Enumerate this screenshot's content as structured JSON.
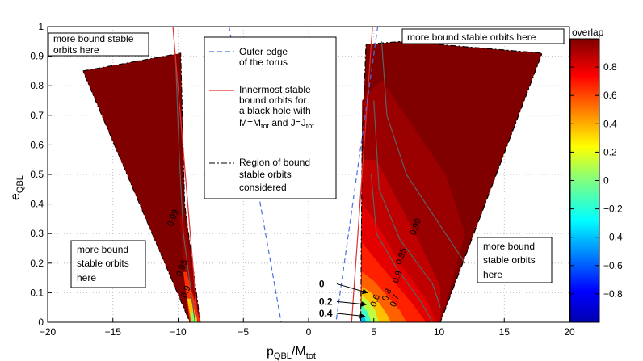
{
  "chart_data": {
    "type": "contour",
    "xlabel_main": "p",
    "xlabel_sub1": "QBL",
    "xlabel_mid": "/M",
    "xlabel_sub2": "tot",
    "ylabel_main": "e",
    "ylabel_sub": "QBL",
    "xlim": [
      -20,
      20
    ],
    "ylim": [
      0,
      1
    ],
    "x_ticks": [
      -20,
      -15,
      -10,
      -5,
      0,
      5,
      10,
      15,
      20
    ],
    "y_ticks": [
      0,
      0.1,
      0.2,
      0.3,
      0.4,
      0.5,
      0.6,
      0.7,
      0.8,
      0.9,
      1
    ],
    "grid": true,
    "colorbar": {
      "title": "overlap",
      "range": [
        -1,
        1
      ],
      "ticks": [
        0.8,
        0.6,
        0.4,
        0.2,
        0,
        -0.2,
        -0.4,
        -0.6,
        -0.8
      ],
      "tick_labels": [
        "0.8",
        "0.6",
        "0.4",
        "0.2",
        "0",
        "−0.2",
        "−0.4",
        "−0.6",
        "−0.8"
      ]
    },
    "regions": {
      "left": [
        [
          -17.3,
          0.85
        ],
        [
          -9.8,
          0.91
        ],
        [
          -9.5,
          0.4
        ],
        [
          -8.3,
          0.0
        ],
        [
          -9.1,
          0.0
        ]
      ],
      "right": [
        [
          4.4,
          0.94
        ],
        [
          7.2,
          0.95
        ],
        [
          17.9,
          0.91
        ],
        [
          10.1,
          0.0
        ],
        [
          4.0,
          0.0
        ],
        [
          4.1,
          0.6
        ]
      ]
    },
    "isco_lines": [
      [
        [
          -10.4,
          1.0
        ],
        [
          -8.5,
          0.0
        ]
      ],
      [
        [
          4.9,
          1.0
        ],
        [
          3.3,
          0.0
        ]
      ]
    ],
    "torus_lines": [
      [
        [
          -6.1,
          1.0
        ],
        [
          -2.1,
          0.0
        ]
      ],
      [
        [
          5.3,
          1.0
        ],
        [
          2.1,
          0.0
        ]
      ]
    ],
    "contours_left": [
      {
        "label": "0.99",
        "x": -10.2,
        "y": 0.35
      },
      {
        "label": "0.95",
        "x": -9.5,
        "y": 0.18
      },
      {
        "label": "0.9",
        "x": -9.2,
        "y": 0.1
      }
    ],
    "contours_right": [
      {
        "label": "0.99",
        "x": 8.4,
        "y": 0.32
      },
      {
        "label": "0.95",
        "x": 7.3,
        "y": 0.22
      },
      {
        "label": "0.9",
        "x": 7.0,
        "y": 0.15
      },
      {
        "label": "0.8",
        "x": 6.2,
        "y": 0.09
      },
      {
        "label": "0.7",
        "x": 6.8,
        "y": 0.07
      },
      {
        "label": "0.6",
        "x": 5.3,
        "y": 0.07
      }
    ],
    "arrow_labels": [
      {
        "label": "0",
        "x_text": 0.8,
        "y_text": 0.13,
        "x_to": 4.5,
        "y_to": 0.1
      },
      {
        "label": "0.2",
        "x_text": 0.8,
        "y_text": 0.07,
        "x_to": 4.4,
        "y_to": 0.06
      },
      {
        "label": "0.4",
        "x_text": 0.8,
        "y_text": 0.03,
        "x_to": 4.3,
        "y_to": 0.02
      }
    ],
    "legend": {
      "entries": [
        {
          "label_lines": [
            "Outer edge",
            "of the torus"
          ],
          "style": "blue-dashed"
        },
        {
          "label_lines": [
            "Innermost stable",
            "bound orbits for",
            "a black hole with"
          ],
          "style": "red-solid"
        },
        {
          "label_lines": [
            "Region of bound",
            "stable orbits",
            "considered"
          ],
          "style": "black-dashdot"
        }
      ],
      "math_line": {
        "m1": "M=M",
        "s1": "tot",
        "and": " and J=J",
        "s2": "tot"
      }
    },
    "annotations": [
      {
        "lines": [
          "more bound stable"
        ],
        "lines2": [
          "orbits here"
        ],
        "pos": "top-left"
      },
      {
        "lines": [
          "more bound stable orbits here"
        ],
        "pos": "top-right"
      },
      {
        "lines": [
          "more bound",
          "stable orbits",
          "here"
        ],
        "pos": "left"
      },
      {
        "lines": [
          "more bound",
          "stable orbits",
          "here"
        ],
        "pos": "right"
      }
    ]
  }
}
